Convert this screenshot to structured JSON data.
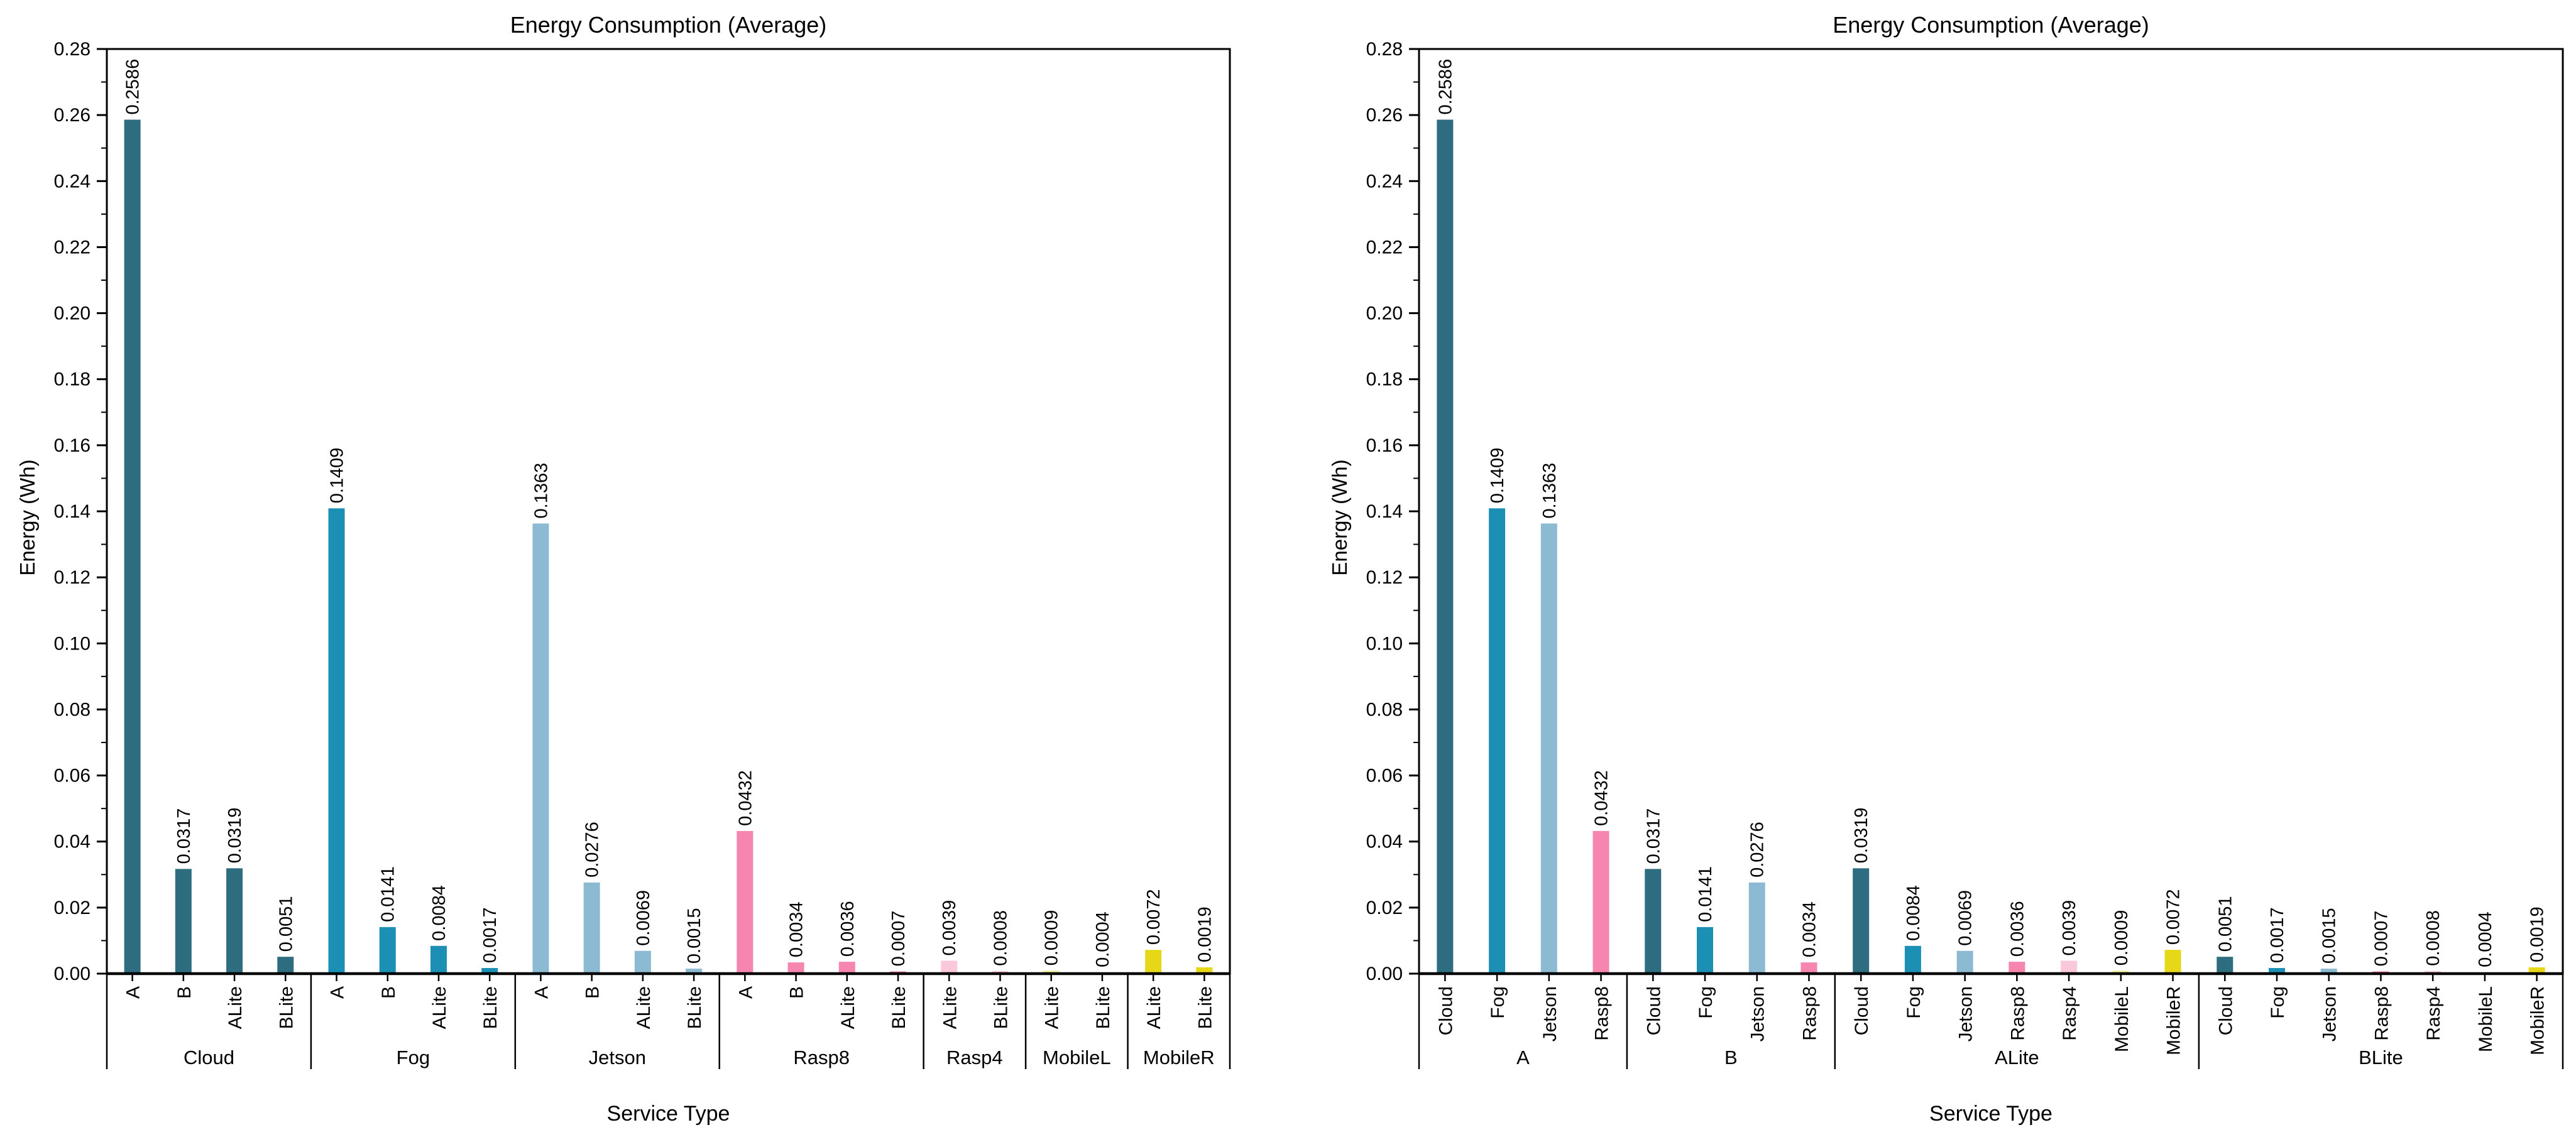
{
  "figure_title": "Energy Consumption (Average)",
  "palette": {
    "Cloud": "#2E6C80",
    "Fog": "#1C8FB5",
    "Jetson": "#8CBAD3",
    "Rasp8": "#F685B0",
    "Rasp4": "#FBC7DA",
    "MobileL": "#F0EE9D",
    "MobileR": "#E6D816"
  },
  "text_color": "#000000",
  "chart_data": [
    {
      "type": "bar",
      "title": "Energy Consumption (Average)",
      "xlabel": "Service Type",
      "ylabel": "Energy (Wh)",
      "ylim": [
        0,
        0.28
      ],
      "ytick_step": 0.02,
      "ytick_minor_step": 0.01,
      "ytick_labels": [
        "0.00",
        "0.02",
        "0.04",
        "0.06",
        "0.08",
        "0.10",
        "0.12",
        "0.14",
        "0.16",
        "0.18",
        "0.20",
        "0.22",
        "0.24",
        "0.26",
        "0.28"
      ],
      "value_label_decimals": 4,
      "value_label_rotation": 90,
      "grid": false,
      "legend": "none",
      "grouping": "by-device",
      "groups": [
        {
          "label": "Cloud",
          "bars": [
            {
              "label": "A",
              "value": 0.2586,
              "color": "Cloud"
            },
            {
              "label": "B",
              "value": 0.0317,
              "color": "Cloud"
            },
            {
              "label": "ALite",
              "value": 0.0319,
              "color": "Cloud"
            },
            {
              "label": "BLite",
              "value": 0.0051,
              "color": "Cloud"
            }
          ]
        },
        {
          "label": "Fog",
          "bars": [
            {
              "label": "A",
              "value": 0.1409,
              "color": "Fog"
            },
            {
              "label": "B",
              "value": 0.0141,
              "color": "Fog"
            },
            {
              "label": "ALite",
              "value": 0.0084,
              "color": "Fog"
            },
            {
              "label": "BLite",
              "value": 0.0017,
              "color": "Fog"
            }
          ]
        },
        {
          "label": "Jetson",
          "bars": [
            {
              "label": "A",
              "value": 0.1363,
              "color": "Jetson"
            },
            {
              "label": "B",
              "value": 0.0276,
              "color": "Jetson"
            },
            {
              "label": "ALite",
              "value": 0.0069,
              "color": "Jetson"
            },
            {
              "label": "BLite",
              "value": 0.0015,
              "color": "Jetson"
            }
          ]
        },
        {
          "label": "Rasp8",
          "bars": [
            {
              "label": "A",
              "value": 0.0432,
              "color": "Rasp8"
            },
            {
              "label": "B",
              "value": 0.0034,
              "color": "Rasp8"
            },
            {
              "label": "ALite",
              "value": 0.0036,
              "color": "Rasp8"
            },
            {
              "label": "BLite",
              "value": 0.0007,
              "color": "Rasp8"
            }
          ]
        },
        {
          "label": "Rasp4",
          "bars": [
            {
              "label": "ALite",
              "value": 0.0039,
              "color": "Rasp4"
            },
            {
              "label": "BLite",
              "value": 0.0008,
              "color": "Rasp4"
            }
          ]
        },
        {
          "label": "MobileL",
          "bars": [
            {
              "label": "ALite",
              "value": 0.0009,
              "color": "MobileL"
            },
            {
              "label": "BLite",
              "value": 0.0004,
              "color": "MobileL"
            }
          ]
        },
        {
          "label": "MobileR",
          "bars": [
            {
              "label": "ALite",
              "value": 0.0072,
              "color": "MobileR"
            },
            {
              "label": "BLite",
              "value": 0.0019,
              "color": "MobileR"
            }
          ]
        }
      ]
    },
    {
      "type": "bar",
      "title": "Energy Consumption (Average)",
      "xlabel": "Service Type",
      "ylabel": "Energy (Wh)",
      "ylim": [
        0,
        0.28
      ],
      "ytick_step": 0.02,
      "ytick_minor_step": 0.01,
      "ytick_labels": [
        "0.00",
        "0.02",
        "0.04",
        "0.06",
        "0.08",
        "0.10",
        "0.12",
        "0.14",
        "0.16",
        "0.18",
        "0.20",
        "0.22",
        "0.24",
        "0.26",
        "0.28"
      ],
      "value_label_decimals": 4,
      "value_label_rotation": 90,
      "grid": false,
      "legend": "none",
      "grouping": "by-service",
      "groups": [
        {
          "label": "A",
          "bars": [
            {
              "label": "Cloud",
              "value": 0.2586,
              "color": "Cloud"
            },
            {
              "label": "Fog",
              "value": 0.1409,
              "color": "Fog"
            },
            {
              "label": "Jetson",
              "value": 0.1363,
              "color": "Jetson"
            },
            {
              "label": "Rasp8",
              "value": 0.0432,
              "color": "Rasp8"
            }
          ]
        },
        {
          "label": "B",
          "bars": [
            {
              "label": "Cloud",
              "value": 0.0317,
              "color": "Cloud"
            },
            {
              "label": "Fog",
              "value": 0.0141,
              "color": "Fog"
            },
            {
              "label": "Jetson",
              "value": 0.0276,
              "color": "Jetson"
            },
            {
              "label": "Rasp8",
              "value": 0.0034,
              "color": "Rasp8"
            }
          ]
        },
        {
          "label": "ALite",
          "bars": [
            {
              "label": "Cloud",
              "value": 0.0319,
              "color": "Cloud"
            },
            {
              "label": "Fog",
              "value": 0.0084,
              "color": "Fog"
            },
            {
              "label": "Jetson",
              "value": 0.0069,
              "color": "Jetson"
            },
            {
              "label": "Rasp8",
              "value": 0.0036,
              "color": "Rasp8"
            },
            {
              "label": "Rasp4",
              "value": 0.0039,
              "color": "Rasp4"
            },
            {
              "label": "MobileL",
              "value": 0.0009,
              "color": "MobileL"
            },
            {
              "label": "MobileR",
              "value": 0.0072,
              "color": "MobileR"
            }
          ]
        },
        {
          "label": "BLite",
          "bars": [
            {
              "label": "Cloud",
              "value": 0.0051,
              "color": "Cloud"
            },
            {
              "label": "Fog",
              "value": 0.0017,
              "color": "Fog"
            },
            {
              "label": "Jetson",
              "value": 0.0015,
              "color": "Jetson"
            },
            {
              "label": "Rasp8",
              "value": 0.0007,
              "color": "Rasp8"
            },
            {
              "label": "Rasp4",
              "value": 0.0008,
              "color": "Rasp4"
            },
            {
              "label": "MobileL",
              "value": 0.0004,
              "color": "MobileL"
            },
            {
              "label": "MobileR",
              "value": 0.0019,
              "color": "MobileR"
            }
          ]
        }
      ]
    }
  ]
}
